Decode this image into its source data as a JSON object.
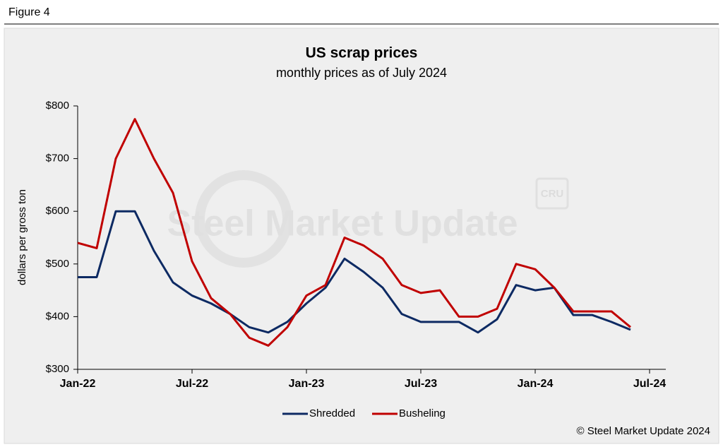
{
  "figure_label": "Figure 4",
  "chart_data": {
    "type": "line",
    "title": "US scrap prices",
    "subtitle": "monthly prices as of July 2024",
    "y_label": "dollars per  gross ton",
    "watermark": "Steel Market Update",
    "watermark_logo": "CRU",
    "source": "© Steel Market Update 2024",
    "categories": [
      "Jan-22",
      null,
      null,
      null,
      null,
      null,
      "Jul-22",
      null,
      null,
      null,
      null,
      null,
      "Jan-23",
      null,
      null,
      null,
      null,
      null,
      "Jul-23",
      null,
      null,
      null,
      null,
      null,
      "Jan-24",
      null,
      null,
      null,
      null,
      null,
      "Jul-24"
    ],
    "series": [
      {
        "name": "Shredded",
        "color": "#0d2a63",
        "values": [
          475,
          475,
          600,
          600,
          525,
          465,
          440,
          425,
          405,
          380,
          370,
          390,
          425,
          455,
          510,
          485,
          455,
          405,
          390,
          390,
          390,
          370,
          395,
          460,
          450,
          455,
          403,
          403,
          390,
          375,
          null
        ]
      },
      {
        "name": "Busheling",
        "color": "#c00000",
        "values": [
          540,
          530,
          700,
          775,
          700,
          635,
          505,
          435,
          405,
          360,
          345,
          380,
          440,
          460,
          550,
          535,
          510,
          460,
          445,
          450,
          400,
          400,
          415,
          500,
          490,
          455,
          410,
          410,
          410,
          380,
          null
        ]
      }
    ],
    "ylim": [
      300,
      800
    ],
    "yticks": [
      {
        "value": 300,
        "label": "$300"
      },
      {
        "value": 400,
        "label": "$400"
      },
      {
        "value": 500,
        "label": "$500"
      },
      {
        "value": 600,
        "label": "$600"
      },
      {
        "value": 700,
        "label": "$700"
      },
      {
        "value": 800,
        "label": "$800"
      }
    ],
    "legend": "bottom"
  }
}
